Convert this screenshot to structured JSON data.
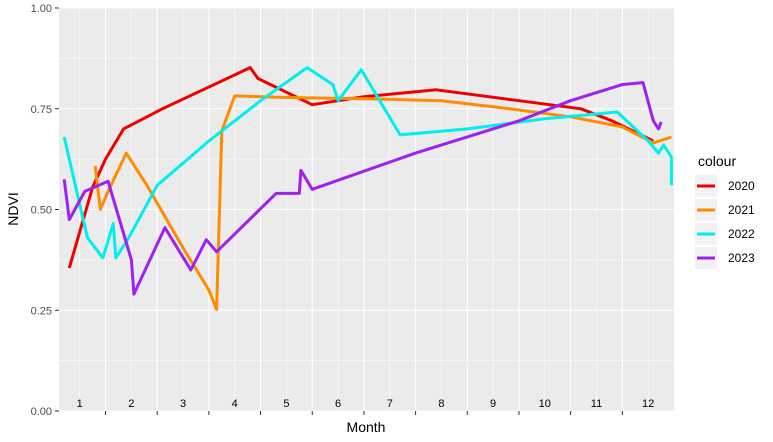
{
  "chart_data": {
    "type": "line",
    "xlabel": "Month",
    "ylabel": "NDVI",
    "ylim": [
      0,
      1
    ],
    "xlim": [
      0.6,
      12.5
    ],
    "y_ticks": [
      "0.00",
      "0.25",
      "0.50",
      "0.75",
      "1.00"
    ],
    "month_labels": [
      "1",
      "2",
      "3",
      "4",
      "5",
      "6",
      "7",
      "8",
      "9",
      "10",
      "11",
      "12"
    ],
    "grid": true,
    "legend": {
      "title": "colour",
      "placement": "right"
    },
    "series": [
      {
        "name": "2020",
        "color": "#ee0000",
        "points": [
          [
            0.8,
            0.355
          ],
          [
            1.25,
            0.555
          ],
          [
            1.5,
            0.625
          ],
          [
            1.85,
            0.7
          ],
          [
            2.6,
            0.75
          ],
          [
            4.3,
            0.852
          ],
          [
            4.45,
            0.825
          ],
          [
            5.5,
            0.76
          ],
          [
            6.5,
            0.78
          ],
          [
            7.9,
            0.797
          ],
          [
            9.5,
            0.77
          ],
          [
            10.7,
            0.75
          ],
          [
            11.3,
            0.72
          ],
          [
            12.1,
            0.67
          ]
        ]
      },
      {
        "name": "2021",
        "color": "#ff8c00",
        "points": [
          [
            1.3,
            0.608
          ],
          [
            1.4,
            0.5
          ],
          [
            1.55,
            0.545
          ],
          [
            1.9,
            0.64
          ],
          [
            2.3,
            0.56
          ],
          [
            3.0,
            0.405
          ],
          [
            3.5,
            0.3
          ],
          [
            3.65,
            0.252
          ],
          [
            3.75,
            0.695
          ],
          [
            4.0,
            0.782
          ],
          [
            5.0,
            0.778
          ],
          [
            6.5,
            0.775
          ],
          [
            8.0,
            0.77
          ],
          [
            9.0,
            0.755
          ],
          [
            10.5,
            0.73
          ],
          [
            11.5,
            0.705
          ],
          [
            12.1,
            0.665
          ],
          [
            12.45,
            0.68
          ]
        ]
      },
      {
        "name": "2022",
        "color": "#00eeee",
        "points": [
          [
            0.7,
            0.68
          ],
          [
            1.15,
            0.43
          ],
          [
            1.45,
            0.38
          ],
          [
            1.65,
            0.465
          ],
          [
            1.7,
            0.38
          ],
          [
            1.95,
            0.43
          ],
          [
            2.5,
            0.56
          ],
          [
            3.5,
            0.67
          ],
          [
            4.5,
            0.77
          ],
          [
            5.4,
            0.852
          ],
          [
            5.9,
            0.81
          ],
          [
            6.0,
            0.77
          ],
          [
            6.45,
            0.847
          ],
          [
            7.2,
            0.685
          ],
          [
            8.5,
            0.7
          ],
          [
            10.0,
            0.725
          ],
          [
            11.4,
            0.742
          ],
          [
            12.0,
            0.67
          ],
          [
            12.2,
            0.64
          ],
          [
            12.3,
            0.66
          ],
          [
            12.45,
            0.63
          ],
          [
            12.45,
            0.56
          ]
        ]
      },
      {
        "name": "2023",
        "color": "#a020f0",
        "points": [
          [
            0.7,
            0.575
          ],
          [
            0.8,
            0.475
          ],
          [
            1.1,
            0.545
          ],
          [
            1.55,
            0.57
          ],
          [
            2.0,
            0.375
          ],
          [
            2.05,
            0.29
          ],
          [
            2.65,
            0.455
          ],
          [
            3.15,
            0.35
          ],
          [
            3.45,
            0.425
          ],
          [
            3.65,
            0.395
          ],
          [
            4.8,
            0.54
          ],
          [
            5.25,
            0.54
          ],
          [
            5.28,
            0.597
          ],
          [
            5.5,
            0.55
          ],
          [
            7.5,
            0.64
          ],
          [
            9.5,
            0.72
          ],
          [
            10.5,
            0.77
          ],
          [
            11.5,
            0.81
          ],
          [
            11.9,
            0.815
          ],
          [
            12.1,
            0.72
          ],
          [
            12.2,
            0.7
          ],
          [
            12.25,
            0.717
          ]
        ]
      }
    ]
  }
}
